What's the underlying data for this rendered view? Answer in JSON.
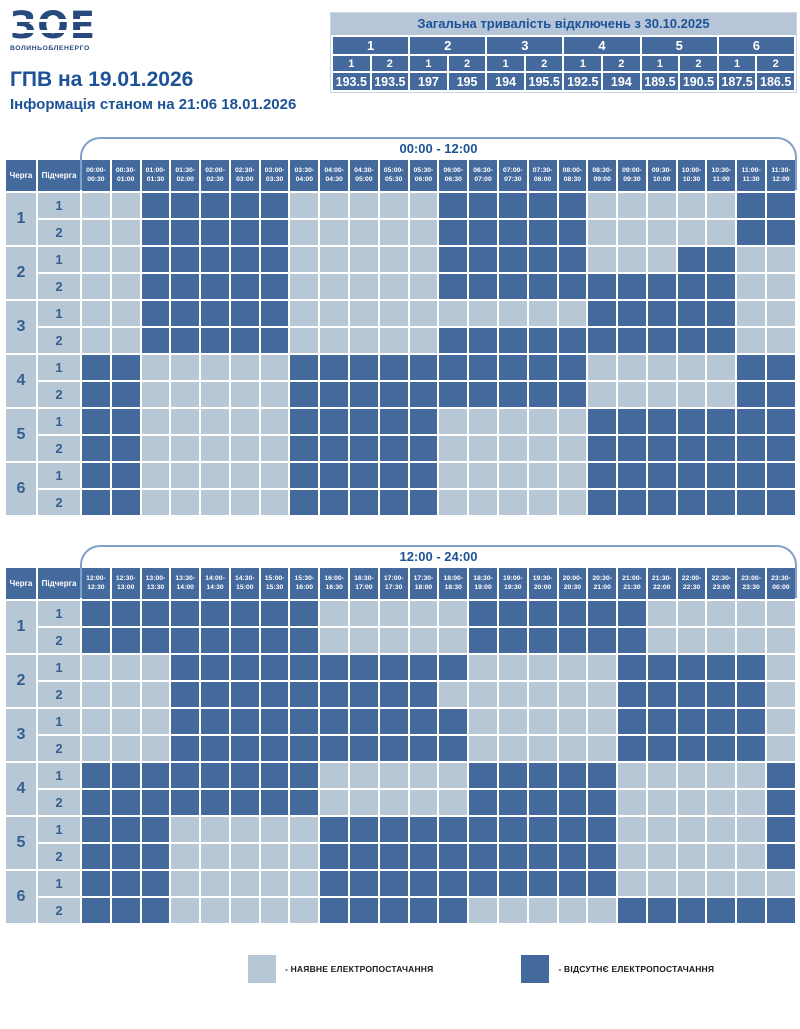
{
  "logo": {
    "mark": "ЗОЕ",
    "name": "ВОЛИНЬОБЛЕНЕРГО"
  },
  "header": {
    "title": "ГПВ на 19.01.2026",
    "subtitle": "Інформація станом на 21:06 18.01.2026"
  },
  "summary": {
    "title": "Загальна тривалість відключень з 30.10.2025",
    "groups": [
      "1",
      "2",
      "3",
      "4",
      "5",
      "6"
    ],
    "subgroups": [
      "1",
      "2",
      "1",
      "2",
      "1",
      "2",
      "1",
      "2",
      "1",
      "2",
      "1",
      "2"
    ],
    "values": [
      "193.5",
      "193.5",
      "197",
      "195",
      "194",
      "195.5",
      "192.5",
      "194",
      "189.5",
      "190.5",
      "187.5",
      "186.5"
    ]
  },
  "schedule": {
    "queue_header": "Черга",
    "subqueue_header": "Підчерга",
    "rows": [
      {
        "queue": "1",
        "sub": "1"
      },
      {
        "queue": "1",
        "sub": "2"
      },
      {
        "queue": "2",
        "sub": "1"
      },
      {
        "queue": "2",
        "sub": "2"
      },
      {
        "queue": "3",
        "sub": "1"
      },
      {
        "queue": "3",
        "sub": "2"
      },
      {
        "queue": "4",
        "sub": "1"
      },
      {
        "queue": "4",
        "sub": "2"
      },
      {
        "queue": "5",
        "sub": "1"
      },
      {
        "queue": "5",
        "sub": "2"
      },
      {
        "queue": "6",
        "sub": "1"
      },
      {
        "queue": "6",
        "sub": "2"
      }
    ]
  },
  "chart_data": [
    {
      "type": "heatmap",
      "title": "00:00 - 12:00",
      "x_labels": [
        [
          "00:00-",
          "00:30"
        ],
        [
          "00:30-",
          "01:00"
        ],
        [
          "01:00-",
          "01:30"
        ],
        [
          "01:30-",
          "02:00"
        ],
        [
          "02:00-",
          "02:30"
        ],
        [
          "02:30-",
          "03:00"
        ],
        [
          "03:00-",
          "03:30"
        ],
        [
          "03:30-",
          "04:00"
        ],
        [
          "04:00-",
          "04:30"
        ],
        [
          "04:30-",
          "05:00"
        ],
        [
          "05:00-",
          "05:30"
        ],
        [
          "05:30-",
          "06:00"
        ],
        [
          "06:00-",
          "06:30"
        ],
        [
          "06:30-",
          "07:00"
        ],
        [
          "07:00-",
          "07:30"
        ],
        [
          "07:30-",
          "08:00"
        ],
        [
          "08:00-",
          "08:30"
        ],
        [
          "08:30-",
          "09:00"
        ],
        [
          "09:00-",
          "09:30"
        ],
        [
          "09:30-",
          "10:00"
        ],
        [
          "10:00-",
          "10:30"
        ],
        [
          "10:30-",
          "11:00"
        ],
        [
          "11:00-",
          "11:30"
        ],
        [
          "11:30-",
          "12:00"
        ]
      ],
      "y_labels": [
        "1.1",
        "1.2",
        "2.1",
        "2.2",
        "3.1",
        "3.2",
        "4.1",
        "4.2",
        "5.1",
        "5.2",
        "6.1",
        "6.2"
      ],
      "values": [
        [
          0,
          0,
          1,
          1,
          1,
          1,
          1,
          0,
          0,
          0,
          0,
          0,
          1,
          1,
          1,
          1,
          1,
          0,
          0,
          0,
          0,
          0,
          1,
          1
        ],
        [
          0,
          0,
          1,
          1,
          1,
          1,
          1,
          0,
          0,
          0,
          0,
          0,
          1,
          1,
          1,
          1,
          1,
          0,
          0,
          0,
          0,
          0,
          1,
          1
        ],
        [
          0,
          0,
          1,
          1,
          1,
          1,
          1,
          0,
          0,
          0,
          0,
          0,
          1,
          1,
          1,
          1,
          1,
          0,
          0,
          0,
          1,
          1,
          0,
          0
        ],
        [
          0,
          0,
          1,
          1,
          1,
          1,
          1,
          0,
          0,
          0,
          0,
          0,
          1,
          1,
          1,
          1,
          1,
          1,
          1,
          1,
          1,
          1,
          0,
          0
        ],
        [
          0,
          0,
          1,
          1,
          1,
          1,
          1,
          0,
          0,
          0,
          0,
          0,
          0,
          0,
          0,
          0,
          0,
          1,
          1,
          1,
          1,
          1,
          0,
          0
        ],
        [
          0,
          0,
          1,
          1,
          1,
          1,
          1,
          0,
          0,
          0,
          0,
          0,
          1,
          1,
          1,
          1,
          1,
          1,
          1,
          1,
          1,
          1,
          0,
          0
        ],
        [
          1,
          1,
          0,
          0,
          0,
          0,
          0,
          1,
          1,
          1,
          1,
          1,
          1,
          1,
          1,
          1,
          1,
          0,
          0,
          0,
          0,
          0,
          1,
          1
        ],
        [
          1,
          1,
          0,
          0,
          0,
          0,
          0,
          1,
          1,
          1,
          1,
          1,
          1,
          1,
          1,
          1,
          1,
          0,
          0,
          0,
          0,
          0,
          1,
          1
        ],
        [
          1,
          1,
          0,
          0,
          0,
          0,
          0,
          1,
          1,
          1,
          1,
          1,
          0,
          0,
          0,
          0,
          0,
          1,
          1,
          1,
          1,
          1,
          1,
          1
        ],
        [
          1,
          1,
          0,
          0,
          0,
          0,
          0,
          1,
          1,
          1,
          1,
          1,
          0,
          0,
          0,
          0,
          0,
          1,
          1,
          1,
          1,
          1,
          1,
          1
        ],
        [
          1,
          1,
          0,
          0,
          0,
          0,
          0,
          1,
          1,
          1,
          1,
          1,
          0,
          0,
          0,
          0,
          0,
          1,
          1,
          1,
          1,
          1,
          1,
          1
        ],
        [
          1,
          1,
          0,
          0,
          0,
          0,
          0,
          1,
          1,
          1,
          1,
          1,
          0,
          0,
          0,
          0,
          0,
          1,
          1,
          1,
          1,
          1,
          1,
          1
        ]
      ],
      "value_meaning": {
        "0": "наявне електропостачання",
        "1": "відсутнє електропостачання"
      }
    },
    {
      "type": "heatmap",
      "title": "12:00 - 24:00",
      "x_labels": [
        [
          "12:00-",
          "12:30"
        ],
        [
          "12:30-",
          "13:00"
        ],
        [
          "13:00-",
          "13:30"
        ],
        [
          "13:30-",
          "14:00"
        ],
        [
          "14:00-",
          "14:30"
        ],
        [
          "14:30-",
          "15:00"
        ],
        [
          "15:00-",
          "15:30"
        ],
        [
          "15:30-",
          "16:00"
        ],
        [
          "16:00-",
          "16:30"
        ],
        [
          "16:30-",
          "17:00"
        ],
        [
          "17:00-",
          "17:30"
        ],
        [
          "17:30-",
          "18:00"
        ],
        [
          "18:00-",
          "18:30"
        ],
        [
          "18:30-",
          "19:00"
        ],
        [
          "19:00-",
          "19:30"
        ],
        [
          "19:30-",
          "20:00"
        ],
        [
          "20:00-",
          "20:30"
        ],
        [
          "20:30-",
          "21:00"
        ],
        [
          "21:00-",
          "21:30"
        ],
        [
          "21:30-",
          "22:00"
        ],
        [
          "22:00-",
          "22:30"
        ],
        [
          "22:30-",
          "23:00"
        ],
        [
          "23:00-",
          "23:30"
        ],
        [
          "23:30-",
          "00:00"
        ]
      ],
      "y_labels": [
        "1.1",
        "1.2",
        "2.1",
        "2.2",
        "3.1",
        "3.2",
        "4.1",
        "4.2",
        "5.1",
        "5.2",
        "6.1",
        "6.2"
      ],
      "values": [
        [
          1,
          1,
          1,
          1,
          1,
          1,
          1,
          1,
          0,
          0,
          0,
          0,
          0,
          1,
          1,
          1,
          1,
          1,
          1,
          0,
          0,
          0,
          0,
          0
        ],
        [
          1,
          1,
          1,
          1,
          1,
          1,
          1,
          1,
          0,
          0,
          0,
          0,
          0,
          1,
          1,
          1,
          1,
          1,
          1,
          0,
          0,
          0,
          0,
          0
        ],
        [
          0,
          0,
          0,
          1,
          1,
          1,
          1,
          1,
          1,
          1,
          1,
          1,
          1,
          0,
          0,
          0,
          0,
          0,
          1,
          1,
          1,
          1,
          1,
          0
        ],
        [
          0,
          0,
          0,
          1,
          1,
          1,
          1,
          1,
          1,
          1,
          1,
          1,
          0,
          0,
          0,
          0,
          0,
          0,
          1,
          1,
          1,
          1,
          1,
          0
        ],
        [
          0,
          0,
          0,
          1,
          1,
          1,
          1,
          1,
          1,
          1,
          1,
          1,
          1,
          0,
          0,
          0,
          0,
          0,
          1,
          1,
          1,
          1,
          1,
          0
        ],
        [
          0,
          0,
          0,
          1,
          1,
          1,
          1,
          1,
          1,
          1,
          1,
          1,
          1,
          0,
          0,
          0,
          0,
          0,
          1,
          1,
          1,
          1,
          1,
          0
        ],
        [
          1,
          1,
          1,
          1,
          1,
          1,
          1,
          1,
          0,
          0,
          0,
          0,
          0,
          1,
          1,
          1,
          1,
          1,
          0,
          0,
          0,
          0,
          0,
          1
        ],
        [
          1,
          1,
          1,
          1,
          1,
          1,
          1,
          1,
          0,
          0,
          0,
          0,
          0,
          1,
          1,
          1,
          1,
          1,
          0,
          0,
          0,
          0,
          0,
          1
        ],
        [
          1,
          1,
          1,
          0,
          0,
          0,
          0,
          0,
          1,
          1,
          1,
          1,
          1,
          1,
          1,
          1,
          1,
          1,
          0,
          0,
          0,
          0,
          0,
          1
        ],
        [
          1,
          1,
          1,
          0,
          0,
          0,
          0,
          0,
          1,
          1,
          1,
          1,
          1,
          1,
          1,
          1,
          1,
          1,
          0,
          0,
          0,
          0,
          0,
          1
        ],
        [
          1,
          1,
          1,
          0,
          0,
          0,
          0,
          0,
          1,
          1,
          1,
          1,
          1,
          1,
          1,
          1,
          1,
          1,
          0,
          0,
          0,
          0,
          0,
          0
        ],
        [
          1,
          1,
          1,
          0,
          0,
          0,
          0,
          0,
          1,
          1,
          1,
          1,
          1,
          0,
          0,
          0,
          0,
          0,
          1,
          1,
          1,
          1,
          1,
          1
        ]
      ],
      "value_meaning": {
        "0": "наявне електропостачання",
        "1": "відсутнє електропостачання"
      }
    }
  ],
  "legend": {
    "items": [
      {
        "key": "available",
        "label": "- НАЯВНЕ ЕЛЕКТРОПОСТАЧАННЯ"
      },
      {
        "key": "outage",
        "label": "- ВІДСУТНЄ ЕЛЕКТРОПОСТАЧАННЯ"
      }
    ]
  },
  "colors": {
    "outage": "#44699c",
    "available": "#b8c7d6",
    "accent": "#1c5296",
    "grid_label_text": "#33608f",
    "curve_border": "#7fa0c8",
    "summary_title_bg": "#b6c6d8",
    "legend_text": "#1a1a1a"
  }
}
